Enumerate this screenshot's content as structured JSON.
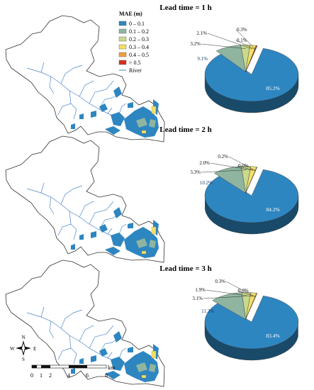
{
  "legend": {
    "title": "MAE (m)",
    "items": [
      {
        "label": "0 – 0.1",
        "color": "#2e86c1"
      },
      {
        "label": "0.1 – 0.2",
        "color": "#8fb5a0"
      },
      {
        "label": "0.2 – 0.3",
        "color": "#c9d98e"
      },
      {
        "label": "0.3 – 0.4",
        "color": "#f2e06a"
      },
      {
        "label": "0.4 – 0.5",
        "color": "#f0a13a"
      },
      {
        "label": "> 0.5",
        "color": "#d7301f"
      }
    ],
    "river_label": "River",
    "river_color": "#4a86c8"
  },
  "panels": [
    {
      "title": "Lead time = 1 h",
      "slices": [
        {
          "label": "85.2%",
          "value": 85.2
        },
        {
          "label": "9.1%",
          "value": 9.1
        },
        {
          "label": "3.2%",
          "value": 3.2
        },
        {
          "label": "2.1%",
          "value": 2.1
        },
        {
          "label": "0.1%",
          "value": 0.1
        },
        {
          "label": "0.3%",
          "value": 0.3
        }
      ]
    },
    {
      "title": "Lead time = 2 h",
      "slices": [
        {
          "label": "84.2%",
          "value": 84.2
        },
        {
          "label": "10.2%",
          "value": 10.2
        },
        {
          "label": "3.3%",
          "value": 3.3
        },
        {
          "label": "2.0%",
          "value": 2.0
        },
        {
          "label": "0.2%",
          "value": 0.2
        },
        {
          "label": "0.0%",
          "value": 0.0
        }
      ]
    },
    {
      "title": "Lead time = 3 h",
      "slices": [
        {
          "label": "83.4%",
          "value": 83.4
        },
        {
          "label": "11.3%",
          "value": 11.3
        },
        {
          "label": "3.1%",
          "value": 3.1
        },
        {
          "label": "1.9%",
          "value": 1.9
        },
        {
          "label": "0.3%",
          "value": 0.3
        },
        {
          "label": "0.0%",
          "value": 0.0
        }
      ]
    }
  ],
  "scale_bar": {
    "ticks": [
      "0",
      "1",
      "2",
      "4",
      "6",
      "8"
    ],
    "unit": "km"
  },
  "compass": {
    "n": "N",
    "s": "S",
    "e": "E",
    "w": "W"
  }
}
